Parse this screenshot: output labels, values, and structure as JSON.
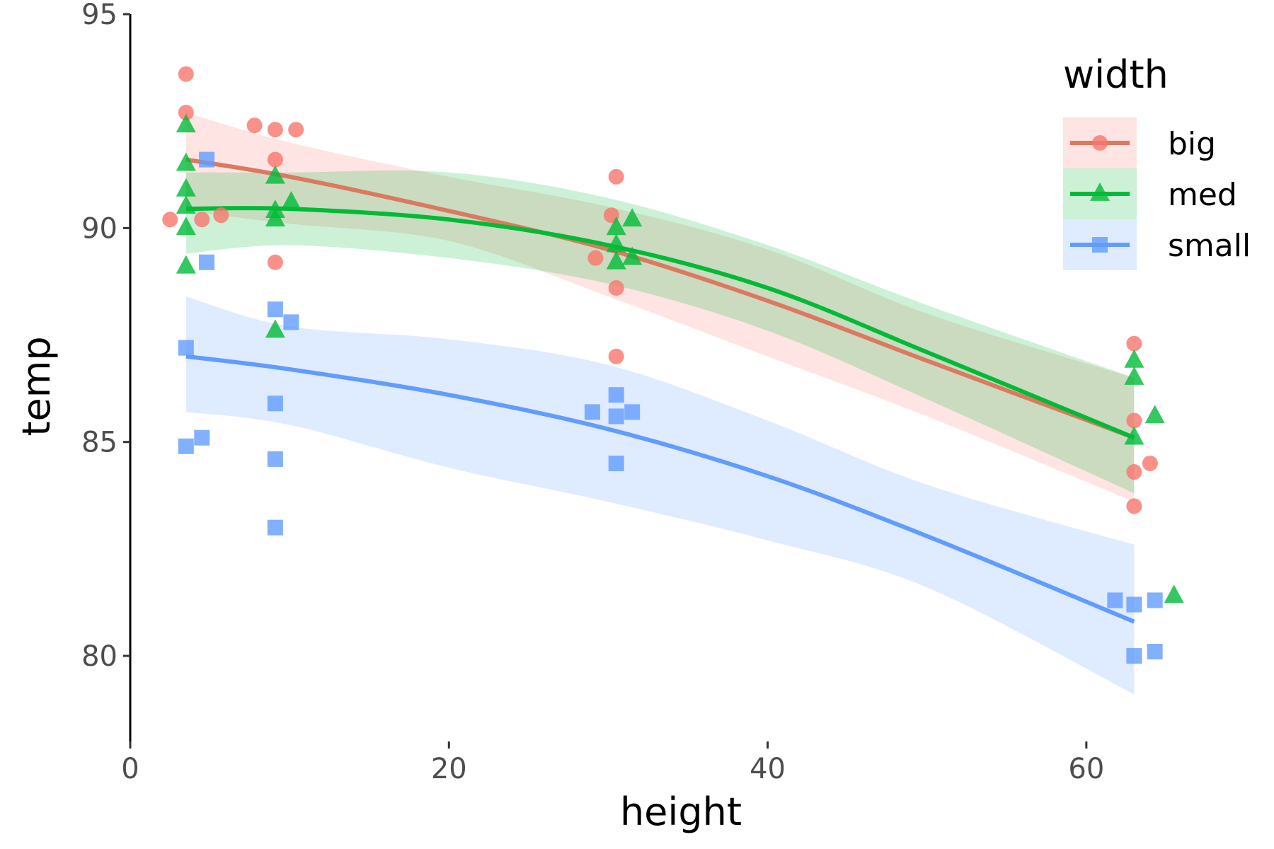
{
  "chart_data": {
    "type": "scatter",
    "xlabel": "height",
    "ylabel": "temp",
    "xlim": [
      0,
      70
    ],
    "ylim": [
      78,
      95
    ],
    "x_ticks": [
      "0",
      "20",
      "40",
      "60"
    ],
    "y_ticks": [
      "80",
      "85",
      "90",
      "95"
    ],
    "x_tick_values": [
      0,
      20,
      40,
      60
    ],
    "y_tick_values": [
      80,
      85,
      90,
      95
    ],
    "grid": false,
    "legend": {
      "title": "width",
      "placement": "top-right",
      "entries": [
        "big",
        "med",
        "small"
      ]
    },
    "series": [
      {
        "name": "big",
        "color": "#F8766D",
        "fit_color": "#D97A61",
        "marker": "circle",
        "points": [
          [
            3.5,
            93.6
          ],
          [
            3.5,
            92.7
          ],
          [
            2.5,
            90.2
          ],
          [
            4.5,
            90.2
          ],
          [
            5.7,
            90.3
          ],
          [
            7.8,
            92.4
          ],
          [
            9.1,
            92.3
          ],
          [
            10.4,
            92.3
          ],
          [
            9.1,
            91.6
          ],
          [
            9.1,
            89.2
          ],
          [
            30.5,
            91.2
          ],
          [
            30.2,
            90.3
          ],
          [
            29.2,
            89.3
          ],
          [
            30.5,
            88.6
          ],
          [
            30.5,
            87.0
          ],
          [
            63.0,
            87.3
          ],
          [
            63.0,
            85.5
          ],
          [
            64.0,
            84.5
          ],
          [
            63.0,
            84.3
          ],
          [
            63.0,
            83.5
          ]
        ],
        "fit": [
          [
            3.5,
            91.6
          ],
          [
            10,
            91.2
          ],
          [
            20,
            90.4
          ],
          [
            30,
            89.5
          ],
          [
            40,
            88.3
          ],
          [
            50,
            86.9
          ],
          [
            63,
            85.1
          ]
        ],
        "band_upper": [
          [
            3.5,
            92.7
          ],
          [
            10,
            92.0
          ],
          [
            20,
            91.2
          ],
          [
            30,
            90.5
          ],
          [
            40,
            89.5
          ],
          [
            50,
            88.0
          ],
          [
            63,
            86.5
          ]
        ],
        "band_lower": [
          [
            3.5,
            90.4
          ],
          [
            10,
            90.1
          ],
          [
            20,
            89.7
          ],
          [
            30,
            88.4
          ],
          [
            40,
            87.0
          ],
          [
            50,
            85.6
          ],
          [
            63,
            83.6
          ]
        ]
      },
      {
        "name": "med",
        "color": "#00BA38",
        "fit_color": "#00BA38",
        "marker": "triangle",
        "points": [
          [
            3.5,
            92.4
          ],
          [
            3.5,
            91.5
          ],
          [
            3.5,
            90.9
          ],
          [
            3.5,
            90.5
          ],
          [
            3.5,
            90.0
          ],
          [
            3.5,
            89.1
          ],
          [
            9.1,
            91.2
          ],
          [
            9.1,
            90.4
          ],
          [
            9.1,
            90.2
          ],
          [
            10.1,
            90.6
          ],
          [
            9.1,
            87.6
          ],
          [
            30.5,
            90.0
          ],
          [
            31.5,
            90.2
          ],
          [
            30.5,
            89.6
          ],
          [
            30.5,
            89.2
          ],
          [
            31.5,
            89.3
          ],
          [
            63.0,
            86.9
          ],
          [
            63.0,
            86.5
          ],
          [
            64.3,
            85.6
          ],
          [
            63.0,
            85.1
          ],
          [
            65.5,
            81.4
          ]
        ],
        "fit": [
          [
            3.5,
            90.45
          ],
          [
            10,
            90.45
          ],
          [
            20,
            90.2
          ],
          [
            30,
            89.6
          ],
          [
            40,
            88.6
          ],
          [
            50,
            87.1
          ],
          [
            63,
            85.1
          ]
        ],
        "band_upper": [
          [
            3.5,
            91.3
          ],
          [
            10,
            91.3
          ],
          [
            20,
            91.3
          ],
          [
            30,
            90.7
          ],
          [
            40,
            89.6
          ],
          [
            50,
            88.2
          ],
          [
            63,
            86.5
          ]
        ],
        "band_lower": [
          [
            3.5,
            89.4
          ],
          [
            10,
            89.6
          ],
          [
            20,
            89.3
          ],
          [
            30,
            88.7
          ],
          [
            40,
            87.6
          ],
          [
            50,
            86.0
          ],
          [
            63,
            83.8
          ]
        ]
      },
      {
        "name": "small",
        "color": "#619CFF",
        "fit_color": "#619CFF",
        "marker": "square",
        "points": [
          [
            4.8,
            91.6
          ],
          [
            4.8,
            89.2
          ],
          [
            3.5,
            87.2
          ],
          [
            3.5,
            84.9
          ],
          [
            4.5,
            85.1
          ],
          [
            9.1,
            88.1
          ],
          [
            10.1,
            87.8
          ],
          [
            9.1,
            85.9
          ],
          [
            9.1,
            84.6
          ],
          [
            9.1,
            83.0
          ],
          [
            29.0,
            85.7
          ],
          [
            30.5,
            86.1
          ],
          [
            30.5,
            85.6
          ],
          [
            31.5,
            85.7
          ],
          [
            30.5,
            84.5
          ],
          [
            61.8,
            81.3
          ],
          [
            63.0,
            81.2
          ],
          [
            64.3,
            81.3
          ],
          [
            63.0,
            80.0
          ],
          [
            64.3,
            80.1
          ]
        ],
        "fit": [
          [
            3.5,
            87.0
          ],
          [
            10,
            86.7
          ],
          [
            20,
            86.1
          ],
          [
            30,
            85.3
          ],
          [
            40,
            84.2
          ],
          [
            50,
            82.8
          ],
          [
            63,
            80.8
          ]
        ],
        "band_upper": [
          [
            3.5,
            88.4
          ],
          [
            10,
            87.7
          ],
          [
            20,
            87.4
          ],
          [
            30,
            86.8
          ],
          [
            40,
            85.5
          ],
          [
            50,
            84.0
          ],
          [
            63,
            82.6
          ]
        ],
        "band_lower": [
          [
            3.5,
            85.7
          ],
          [
            10,
            85.4
          ],
          [
            20,
            84.4
          ],
          [
            30,
            83.6
          ],
          [
            40,
            82.7
          ],
          [
            50,
            81.6
          ],
          [
            63,
            79.1
          ]
        ]
      }
    ]
  }
}
